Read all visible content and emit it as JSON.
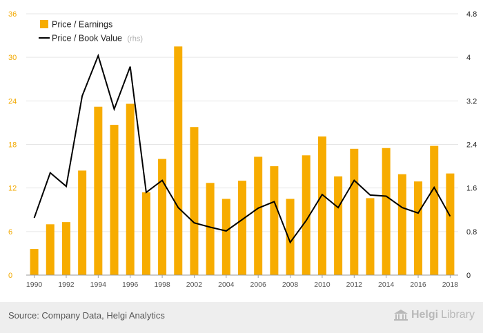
{
  "chart_data": {
    "type": "bar+line",
    "x": [
      1990,
      1991,
      1992,
      1993,
      1994,
      1995,
      1996,
      1997,
      1998,
      2000,
      2002,
      2003,
      2004,
      2005,
      2006,
      2007,
      2008,
      2009,
      2010,
      2011,
      2012,
      2013,
      2014,
      2015,
      2016,
      2017,
      2018
    ],
    "x_tick_labels": [
      "1990",
      "1992",
      "1994",
      "1996",
      "1998",
      "2002",
      "2004",
      "2006",
      "2008",
      "2010",
      "2012",
      "2014",
      "2016",
      "2018"
    ],
    "x_tick_values": [
      1990,
      1992,
      1994,
      1996,
      1998,
      2002,
      2004,
      2006,
      2008,
      2010,
      2012,
      2014,
      2016,
      2018
    ],
    "series": [
      {
        "name": "Price / Earnings",
        "kind": "bar",
        "axis": "left",
        "color": "#f7ac00",
        "values": [
          3.6,
          7.0,
          7.3,
          14.4,
          23.2,
          20.7,
          23.6,
          11.4,
          16.0,
          31.5,
          20.4,
          12.7,
          10.5,
          13.0,
          16.3,
          15.0,
          10.5,
          16.5,
          19.1,
          13.6,
          17.4,
          10.6,
          17.5,
          13.9,
          12.9,
          17.8,
          14.0
        ]
      },
      {
        "name": "Price / Book Value",
        "name_note": "(rhs)",
        "kind": "line",
        "axis": "right",
        "color": "#000000",
        "values": [
          1.05,
          1.88,
          1.63,
          3.29,
          4.03,
          3.05,
          3.83,
          1.52,
          1.74,
          1.24,
          0.96,
          0.88,
          0.81,
          1.02,
          1.23,
          1.35,
          0.6,
          1.0,
          1.48,
          1.24,
          1.74,
          1.47,
          1.45,
          1.24,
          1.14,
          1.61,
          1.08
        ]
      }
    ],
    "left_axis": {
      "ylim": [
        0,
        36
      ],
      "ticks": [
        "0",
        "6",
        "12",
        "18",
        "24",
        "30",
        "36"
      ],
      "color": "#f2a900"
    },
    "right_axis": {
      "ylim": [
        0,
        4.8
      ],
      "ticks": [
        "0",
        "0.8",
        "1.6",
        "2.4",
        "3.2",
        "4",
        "4.8"
      ]
    },
    "grid": true,
    "legend_position": "top-left"
  },
  "legend": {
    "pe_label": "Price / Earnings",
    "pbv_label": "Price / Book Value",
    "pbv_note": "(rhs)"
  },
  "footer": {
    "source": "Source: Company Data, Helgi Analytics",
    "logo_part1": "Helgi",
    "logo_part2": "Library"
  }
}
